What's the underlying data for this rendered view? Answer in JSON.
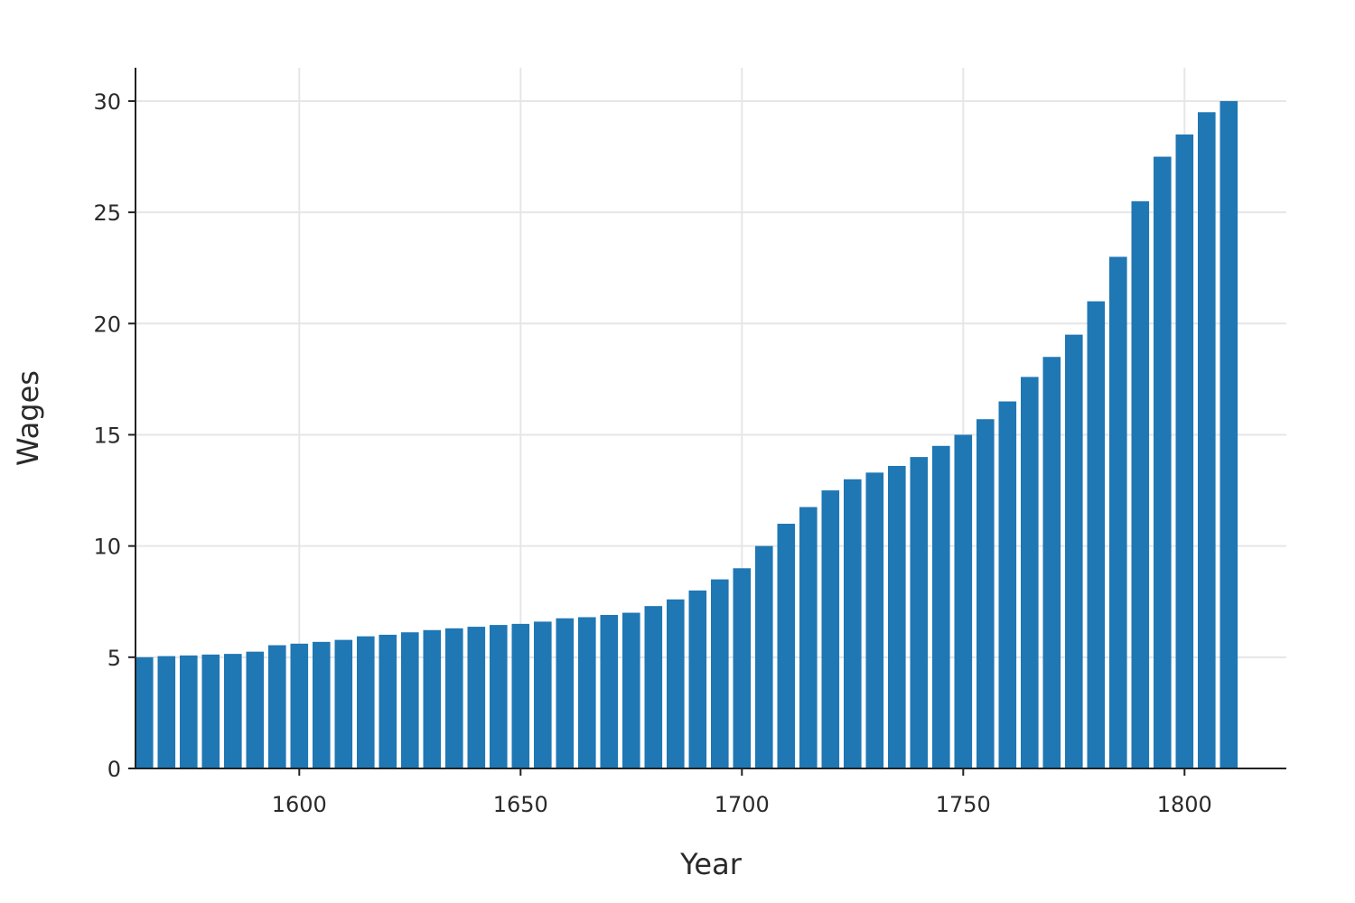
{
  "chart_data": {
    "type": "bar",
    "title": "",
    "xlabel": "Year",
    "ylabel": "Wages",
    "x": [
      1565,
      1570,
      1575,
      1580,
      1585,
      1590,
      1595,
      1600,
      1605,
      1610,
      1615,
      1620,
      1625,
      1630,
      1635,
      1640,
      1645,
      1650,
      1655,
      1660,
      1665,
      1670,
      1675,
      1680,
      1685,
      1690,
      1695,
      1700,
      1705,
      1710,
      1715,
      1720,
      1725,
      1730,
      1735,
      1740,
      1745,
      1750,
      1755,
      1760,
      1765,
      1770,
      1775,
      1780,
      1785,
      1790,
      1795,
      1800,
      1805,
      1810
    ],
    "values": [
      5.0,
      5.05,
      5.08,
      5.12,
      5.15,
      5.25,
      5.54,
      5.61,
      5.69,
      5.78,
      5.94,
      6.01,
      6.12,
      6.22,
      6.3,
      6.37,
      6.45,
      6.5,
      6.6,
      6.75,
      6.8,
      6.9,
      7.0,
      7.3,
      7.6,
      8.0,
      8.5,
      9.0,
      10.0,
      11.0,
      11.75,
      12.5,
      13.0,
      13.3,
      13.6,
      14.0,
      14.5,
      15.0,
      15.7,
      16.5,
      17.6,
      18.5,
      19.5,
      21.0,
      23.0,
      25.5,
      27.5,
      28.5,
      29.5,
      30.0
    ],
    "xlim": [
      1563,
      1823
    ],
    "ylim": [
      0,
      31.5
    ],
    "xticks": [
      "1600",
      "1650",
      "1700",
      "1750",
      "1800"
    ],
    "yticks": [
      "0",
      "5",
      "10",
      "15",
      "20",
      "25",
      "30"
    ],
    "bar_color": "#1f77b4",
    "grid": true,
    "legend": false
  }
}
